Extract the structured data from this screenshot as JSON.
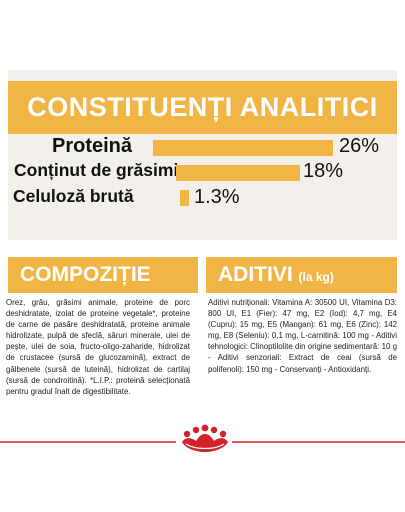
{
  "analysis": {
    "title": "CONSTITUENȚI ANALITICI",
    "rows": [
      {
        "label": "Proteină",
        "value": "26%",
        "fraction": 1.0
      },
      {
        "label": "Conținut de grăsimi",
        "value": "18%",
        "fraction": 0.69
      },
      {
        "label": "Celuloză brută",
        "value": "1.3%",
        "fraction": 0.05
      }
    ]
  },
  "composition": {
    "title": "COMPOZIȚIE",
    "text": "Orez, grâu, grăsimi animale, proteine de porc deshidratate, izolat de proteine vegetale*, proteine de carne de pasăre deshidratată, proteine animale hidrolizate, pulpă de sfeclă, săruri minerale, ulei de pește, ulei de soia, fructo-oligo-zaharide, hidrolizat de crustacee (sursă de glucozamină), extract de gălbenele (sursă de luteină), hidrolizat de cartilaj (sursă de condroitină). *L.I.P.: proteină selecționată pentru gradul înalt de digestibilitate."
  },
  "additives": {
    "title": "ADITIVI",
    "title_unit": "(la kg)",
    "text": "Aditivi nutriționali: Vitamina A: 30500 UI, Vitamina D3: 800 UI, E1 (Fier): 47 mg, E2 (Iod): 4,7 mg, E4 (Cupru): 15 mg, E5 (Mangan): 61 mg, E6 (Zinc): 142 mg, E8 (Seleniu): 0,1 mg, L-carnitină: 100 mg - Aditivi tehnologici: Clinoptilolite din origine sedimentară: 10 g - Aditivi senzoriali: Extract de ceai (sursă de polifenoli): 150 mg - Conservanți - Antioxidanți."
  },
  "colors": {
    "accent": "#f1b545",
    "panel": "#f3f0ec",
    "brand_red": "#d2232a"
  },
  "icons": {
    "logo": "royal-canin-crown-logo"
  }
}
